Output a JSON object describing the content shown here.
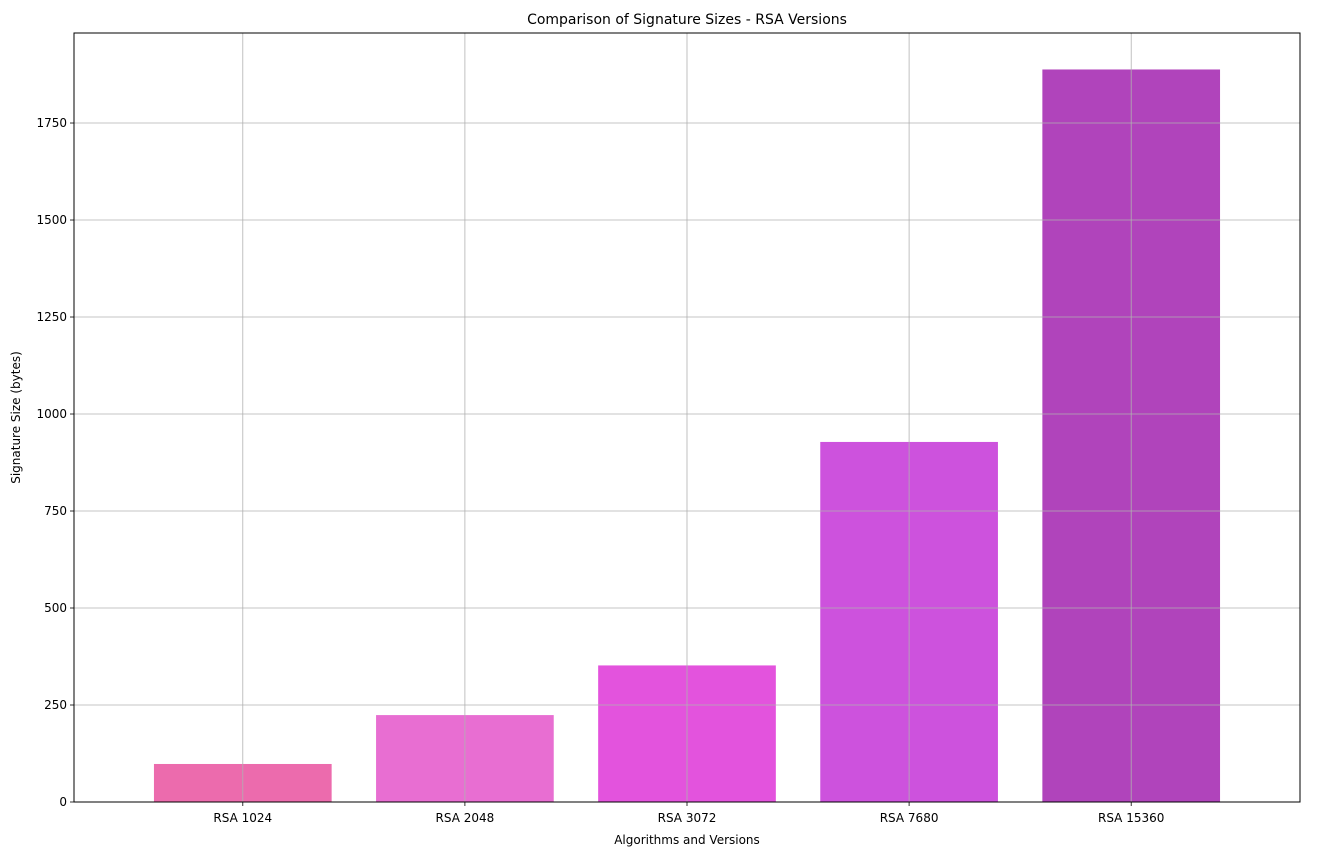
{
  "chart_data": {
    "type": "bar",
    "title": "Comparison of Signature Sizes - RSA Versions",
    "xlabel": "Algorithms and Versions",
    "ylabel": "Signature Size (bytes)",
    "categories": [
      "RSA 1024",
      "RSA 2048",
      "RSA 3072",
      "RSA 7680",
      "RSA 15360"
    ],
    "values": [
      98,
      224,
      352,
      928,
      1888
    ],
    "colors": [
      "#ec6bad",
      "#e86ed2",
      "#e353dd",
      "#cd52dd",
      "#b044bb"
    ],
    "ylim": [
      0,
      1982
    ],
    "yticks": [
      0,
      250,
      500,
      750,
      1000,
      1250,
      1500,
      1750
    ],
    "ytick_labels": [
      "0",
      "250",
      "500",
      "750",
      "1000",
      "1250",
      "1500",
      "1750"
    ],
    "grid": true,
    "grid_color": "#b0b0b0",
    "legend": "none"
  }
}
